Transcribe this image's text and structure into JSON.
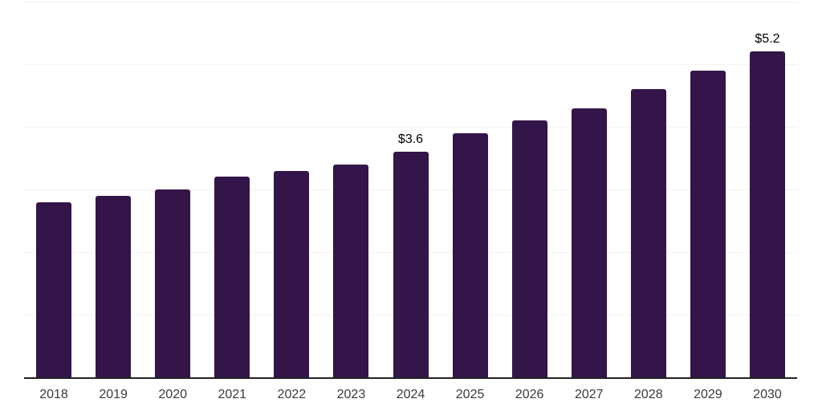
{
  "chart_data": {
    "type": "bar",
    "title": "",
    "xlabel": "",
    "ylabel": "",
    "categories": [
      "2018",
      "2019",
      "2020",
      "2021",
      "2022",
      "2023",
      "2024",
      "2025",
      "2026",
      "2027",
      "2028",
      "2029",
      "2030"
    ],
    "values": [
      2.8,
      2.9,
      3.0,
      3.2,
      3.3,
      3.4,
      3.6,
      3.9,
      4.1,
      4.3,
      4.6,
      4.9,
      5.2
    ],
    "point_labels": [
      "",
      "",
      "",
      "",
      "",
      "",
      "$3.6",
      "",
      "",
      "",
      "",
      "",
      "$5.2"
    ],
    "ylim": [
      0,
      6
    ],
    "gridline_values": [
      1,
      2,
      3,
      4,
      5,
      6
    ],
    "grid": true,
    "legend": "none",
    "y_axis_labels_visible": false
  },
  "colors": {
    "bar": "#331549",
    "gridline": "#f2f2f2",
    "axis_line": "#222222",
    "tick_label": "#3a3a3a",
    "data_label": "#000000",
    "background": "#ffffff"
  }
}
